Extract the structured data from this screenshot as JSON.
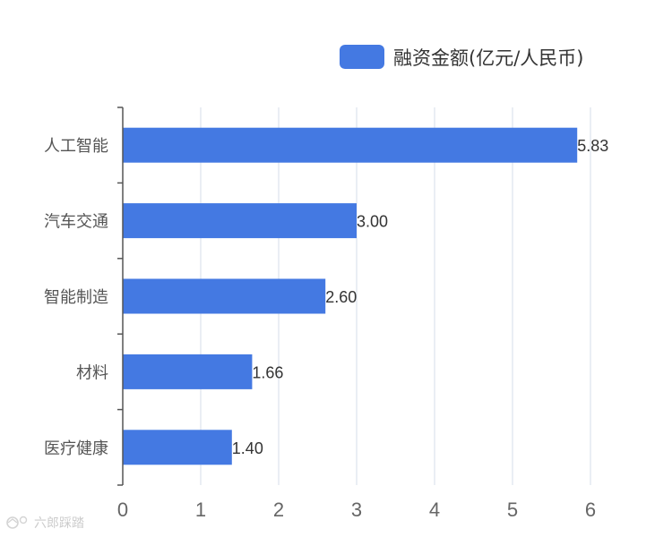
{
  "chart_data": {
    "type": "bar",
    "orientation": "horizontal",
    "categories": [
      "人工智能",
      "汽车交通",
      "智能制造",
      "材料",
      "医疗健康"
    ],
    "series": [
      {
        "name": "融资金额(亿元/人民币)",
        "values": [
          5.83,
          3.0,
          2.6,
          1.66,
          1.4
        ],
        "value_labels": [
          "5.83",
          "3.00",
          "2.60",
          "1.66",
          "1.40"
        ],
        "color": "#4479e2"
      }
    ],
    "x_ticks": [
      "0",
      "1",
      "2",
      "3",
      "4",
      "5",
      "6"
    ],
    "xlim": [
      0,
      6
    ],
    "grid": "vertical",
    "legend_position": "top-right",
    "title": "",
    "xlabel": "",
    "ylabel": ""
  },
  "colors": {
    "bar": "#4479e2",
    "grid": "#dde3ec",
    "axis": "#555555"
  },
  "watermark": {
    "icon": "kr-logo-icon",
    "text": "六郎踩踏"
  }
}
